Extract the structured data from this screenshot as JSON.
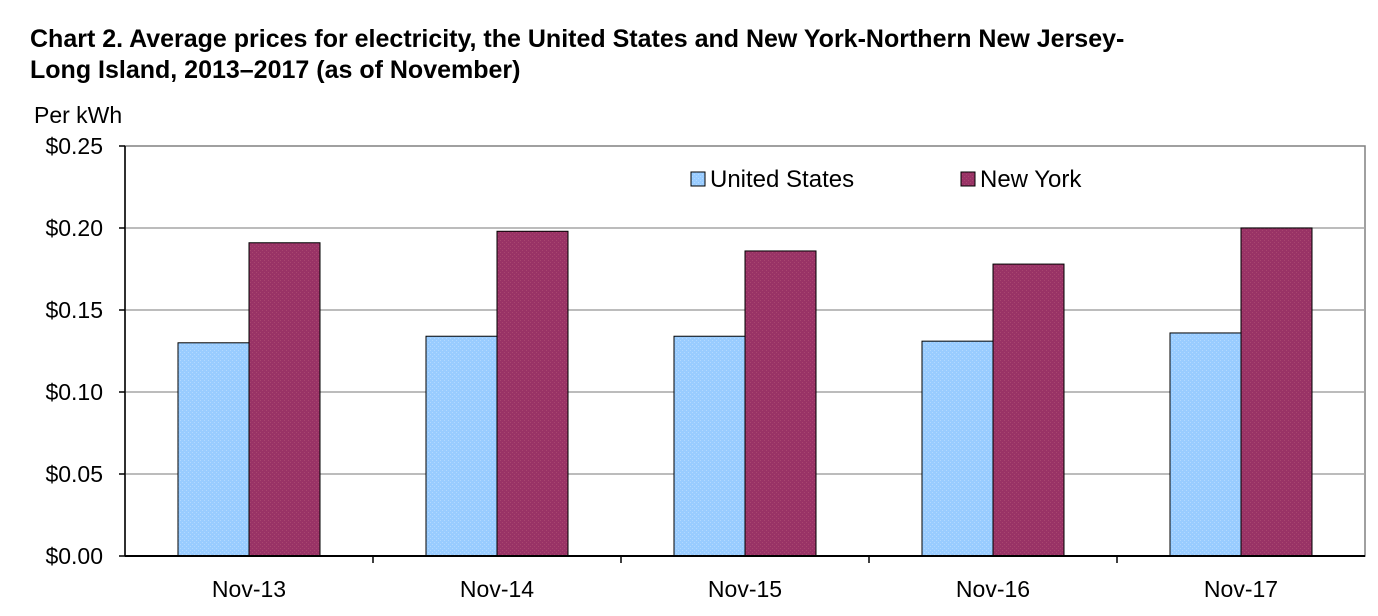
{
  "chart_data": {
    "type": "bar",
    "title_lines": [
      "Chart 2. Average prices for electricity, the United States and New York-Northern New Jersey-",
      "Long Island, 2013–2017 (as of November)"
    ],
    "ylabel": "Per kWh",
    "xlabel": "",
    "categories": [
      "Nov-13",
      "Nov-14",
      "Nov-15",
      "Nov-16",
      "Nov-17"
    ],
    "series": [
      {
        "name": "United States",
        "color": "#99ccff",
        "values": [
          0.13,
          0.134,
          0.134,
          0.131,
          0.136
        ]
      },
      {
        "name": "New York",
        "color": "#993366",
        "values": [
          0.191,
          0.198,
          0.186,
          0.178,
          0.2
        ]
      }
    ],
    "ylim": [
      0,
      0.25
    ],
    "yticks": [
      0.25,
      0.2,
      0.15,
      0.1,
      0.05,
      0.0
    ],
    "ytick_labels": [
      "$0.25",
      "$0.20",
      "$0.15",
      "$0.10",
      "$0.05",
      "$0.00"
    ],
    "grid": true,
    "legend_position": "top-right"
  }
}
